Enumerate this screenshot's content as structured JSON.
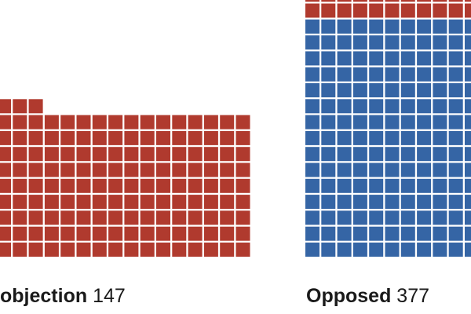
{
  "chart_data": {
    "type": "waffle",
    "groups": [
      {
        "label": "objection",
        "value": 147,
        "segments": [
          {
            "color": "#b03a2e",
            "count": 147
          }
        ]
      },
      {
        "label": "Opposed",
        "value": 377,
        "segments": [
          {
            "color": "#3565a5",
            "count": 240
          },
          {
            "color": "#b03a2e",
            "count": 137
          }
        ]
      }
    ]
  }
}
